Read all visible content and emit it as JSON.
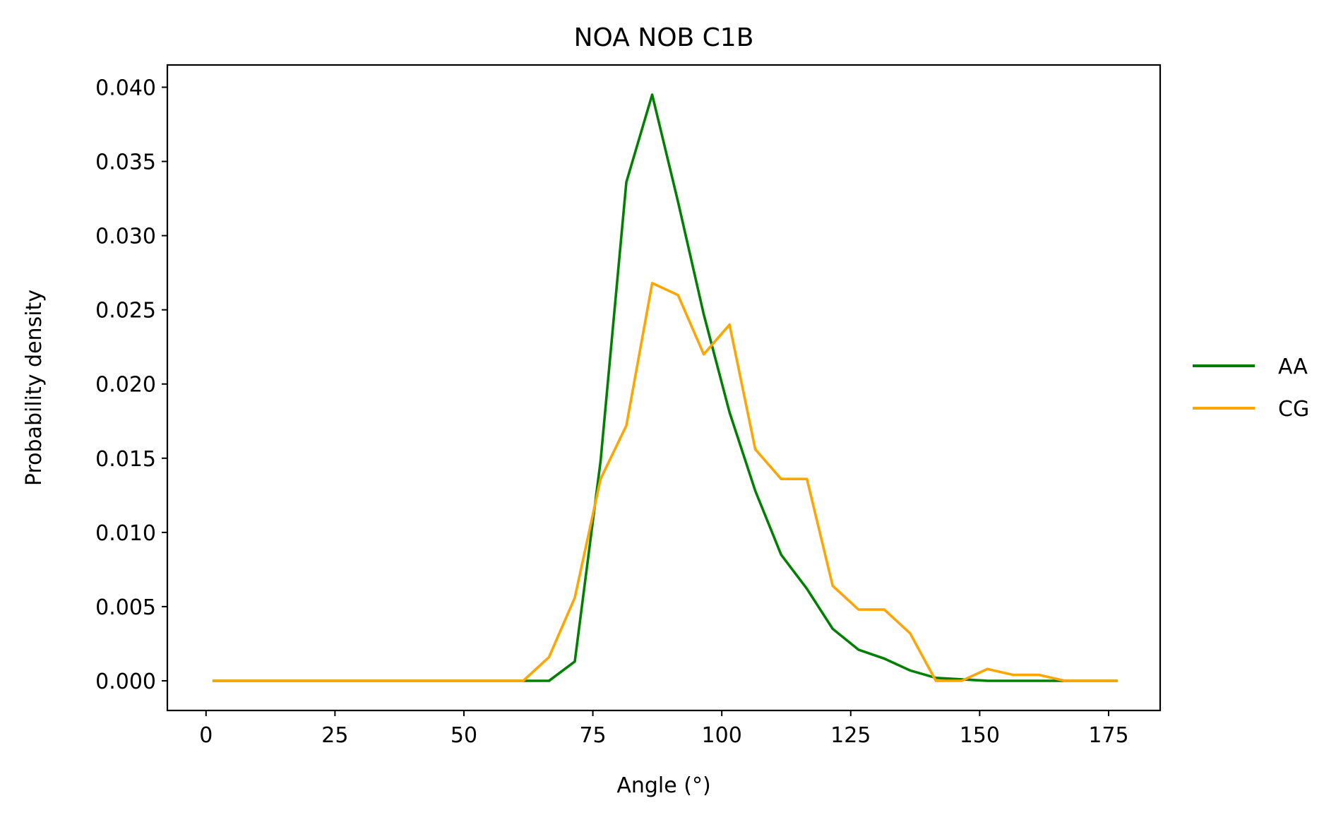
{
  "chart_data": {
    "type": "line",
    "title": "NOA NOB C1B",
    "xlabel": "Angle (°)",
    "ylabel": "Probability density",
    "xlim": [
      -7.5,
      185
    ],
    "ylim": [
      -0.002,
      0.0415
    ],
    "xticks": [
      0,
      25,
      50,
      75,
      100,
      125,
      150,
      175
    ],
    "xtick_labels": [
      "0",
      "25",
      "50",
      "75",
      "100",
      "125",
      "150",
      "175"
    ],
    "yticks": [
      0.0,
      0.005,
      0.01,
      0.015,
      0.02,
      0.025,
      0.03,
      0.035,
      0.04
    ],
    "ytick_labels": [
      "0.000",
      "0.005",
      "0.010",
      "0.015",
      "0.020",
      "0.025",
      "0.030",
      "0.035",
      "0.040"
    ],
    "grid": false,
    "legend_position": "right-outside",
    "x": [
      1.5,
      6.5,
      11.5,
      16.5,
      21.5,
      26.5,
      31.5,
      36.5,
      41.5,
      46.5,
      51.5,
      56.5,
      61.5,
      66.5,
      71.5,
      76.5,
      81.5,
      86.5,
      91.5,
      96.5,
      101.5,
      106.5,
      111.5,
      116.5,
      121.5,
      126.5,
      131.5,
      136.5,
      141.5,
      146.5,
      151.5,
      156.5,
      161.5,
      166.5,
      171.5,
      176.5
    ],
    "series": [
      {
        "name": "AA",
        "color": "#008000",
        "values": [
          0,
          0,
          0,
          0,
          0,
          0,
          0,
          0,
          0,
          0,
          0,
          0,
          0,
          0,
          0.0013,
          0.0148,
          0.0336,
          0.0395,
          0.0323,
          0.0247,
          0.0181,
          0.0128,
          0.0085,
          0.0062,
          0.0035,
          0.0021,
          0.0015,
          0.0007,
          0.0002,
          0.0001,
          0,
          0,
          0,
          0,
          0,
          0
        ]
      },
      {
        "name": "CG",
        "color": "#FFA500",
        "values": [
          0,
          0,
          0,
          0,
          0,
          0,
          0,
          0,
          0,
          0,
          0,
          0,
          0,
          0.0016,
          0.0056,
          0.0136,
          0.0172,
          0.0268,
          0.026,
          0.022,
          0.024,
          0.0156,
          0.0136,
          0.0136,
          0.0064,
          0.0048,
          0.0048,
          0.0032,
          0,
          0,
          0.0008,
          0.0004,
          0.0004,
          0,
          0,
          0
        ]
      }
    ]
  }
}
